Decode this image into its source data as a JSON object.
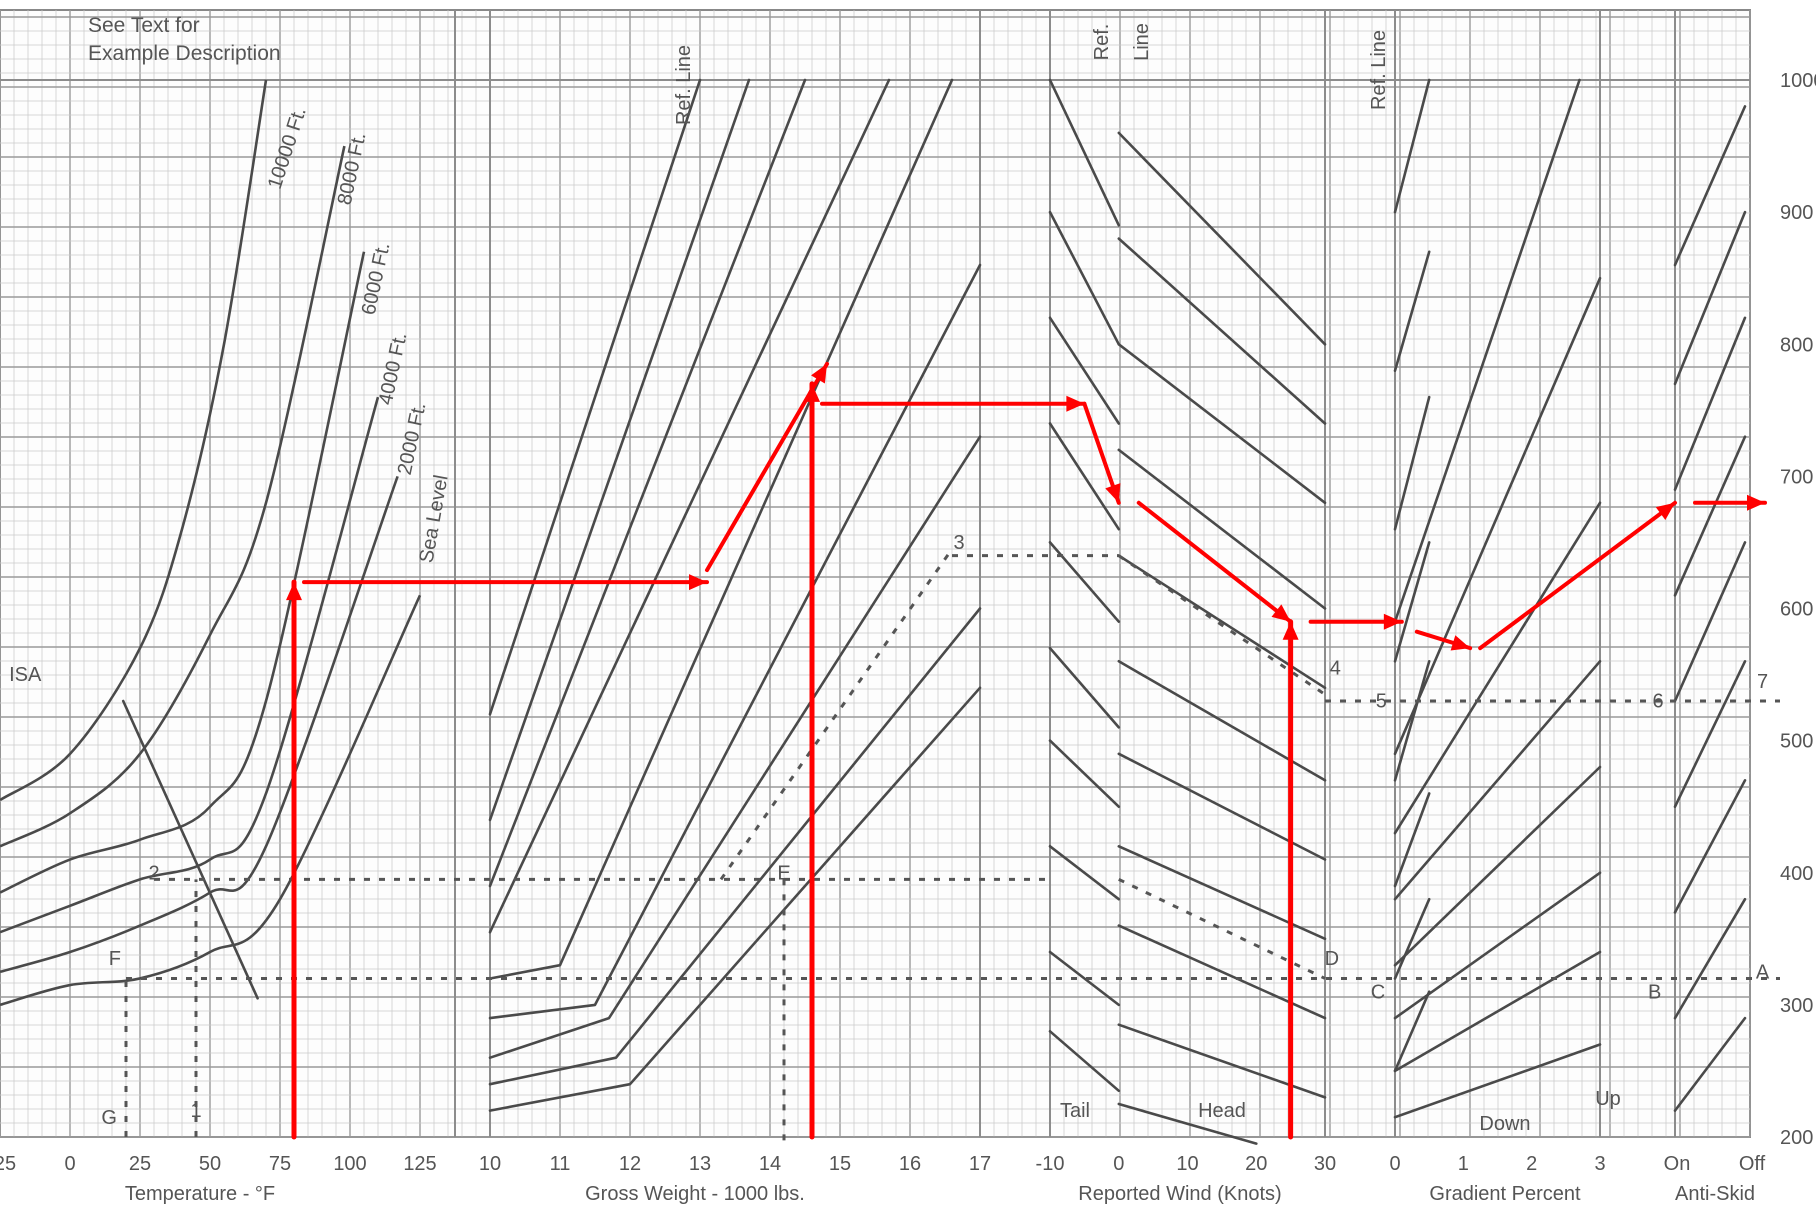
{
  "chart_data": {
    "type": "line",
    "title": "",
    "note": [
      "See Text for",
      "Example Description"
    ],
    "grid": true,
    "y_axis": {
      "ticks": [
        200,
        300,
        400,
        500,
        600,
        700,
        800,
        900,
        1000
      ],
      "range": [
        200,
        1000
      ]
    },
    "panels": [
      {
        "id": "temperature",
        "xlabel": "Temperature - °F",
        "x_ticks": [
          "25",
          "0",
          "25",
          "50",
          "75",
          "100",
          "125"
        ],
        "x_range": [
          -25,
          135
        ],
        "series": [
          {
            "name": "10000 Ft.",
            "x": [
              -25,
              0,
              25,
              40,
              55,
              70
            ],
            "y": [
              455,
              490,
              570,
              660,
              800,
              1000
            ]
          },
          {
            "name": "8000 Ft.",
            "x": [
              -25,
              0,
              25,
              50,
              70,
              98
            ],
            "y": [
              420,
              445,
              490,
              580,
              680,
              950
            ]
          },
          {
            "name": "6000 Ft.",
            "x": [
              -25,
              0,
              25,
              50,
              70,
              105
            ],
            "y": [
              385,
              410,
              425,
              450,
              530,
              870
            ]
          },
          {
            "name": "4000 Ft.",
            "x": [
              -25,
              0,
              25,
              50,
              70,
              110
            ],
            "y": [
              355,
              375,
              395,
              410,
              460,
              760
            ]
          },
          {
            "name": "2000 Ft.",
            "x": [
              -25,
              0,
              25,
              50,
              70,
              117
            ],
            "y": [
              325,
              340,
              360,
              385,
              420,
              700
            ]
          },
          {
            "name": "Sea Level",
            "x": [
              -25,
              0,
              25,
              50,
              75,
              125
            ],
            "y": [
              300,
              315,
              320,
              340,
              380,
              610
            ]
          },
          {
            "name": "ISA",
            "x": [
              19,
              67
            ],
            "y": [
              530,
              305
            ]
          }
        ]
      },
      {
        "id": "gross_weight",
        "xlabel": "Gross Weight - 1000 lbs.",
        "x_ticks": [
          "10",
          "11",
          "12",
          "13",
          "14",
          "15",
          "16",
          "17"
        ],
        "x_range": [
          10,
          17
        ],
        "ref_line": "Ref. Line",
        "series": [
          {
            "x": [
              10,
              13
            ],
            "y": [
              520,
              1000
            ]
          },
          {
            "x": [
              10,
              13.7
            ],
            "y": [
              440,
              1000
            ]
          },
          {
            "x": [
              10,
              14.5
            ],
            "y": [
              390,
              1000
            ]
          },
          {
            "x": [
              10,
              15.7
            ],
            "y": [
              355,
              1000
            ]
          },
          {
            "x": [
              10,
              11,
              16.6
            ],
            "y": [
              320,
              330,
              1000
            ]
          },
          {
            "x": [
              10,
              11.5,
              17
            ],
            "y": [
              290,
              300,
              860
            ]
          },
          {
            "x": [
              10,
              11.7,
              17
            ],
            "y": [
              260,
              290,
              730
            ]
          },
          {
            "x": [
              10,
              11.8,
              17
            ],
            "y": [
              240,
              260,
              600
            ]
          },
          {
            "x": [
              10,
              12,
              17
            ],
            "y": [
              220,
              240,
              540
            ]
          }
        ]
      },
      {
        "id": "wind",
        "xlabel": "Reported Wind (Knots)",
        "x_ticks": [
          "-10",
          "0",
          "10",
          "20",
          "30"
        ],
        "x_range": [
          -10,
          30
        ],
        "ref_line": "Ref. Line",
        "sub_labels": [
          "Tail",
          "Head"
        ],
        "tail_series": [
          {
            "x": [
              -10,
              0
            ],
            "y": [
              1000,
              890
            ]
          },
          {
            "x": [
              -10,
              0
            ],
            "y": [
              900,
              800
            ]
          },
          {
            "x": [
              -10,
              0
            ],
            "y": [
              820,
              740
            ]
          },
          {
            "x": [
              -10,
              0
            ],
            "y": [
              740,
              660
            ]
          },
          {
            "x": [
              -10,
              0
            ],
            "y": [
              650,
              590
            ]
          },
          {
            "x": [
              -10,
              0
            ],
            "y": [
              570,
              510
            ]
          },
          {
            "x": [
              -10,
              0
            ],
            "y": [
              500,
              450
            ]
          },
          {
            "x": [
              -10,
              0
            ],
            "y": [
              420,
              380
            ]
          },
          {
            "x": [
              -10,
              0
            ],
            "y": [
              340,
              300
            ]
          },
          {
            "x": [
              -10,
              0
            ],
            "y": [
              280,
              235
            ]
          }
        ],
        "head_series": [
          {
            "x": [
              0,
              30
            ],
            "y": [
              960,
              800
            ]
          },
          {
            "x": [
              0,
              30
            ],
            "y": [
              880,
              740
            ]
          },
          {
            "x": [
              0,
              30
            ],
            "y": [
              800,
              680
            ]
          },
          {
            "x": [
              0,
              30
            ],
            "y": [
              720,
              600
            ]
          },
          {
            "x": [
              0,
              30
            ],
            "y": [
              640,
              540
            ]
          },
          {
            "x": [
              0,
              30
            ],
            "y": [
              560,
              470
            ]
          },
          {
            "x": [
              0,
              30
            ],
            "y": [
              490,
              410
            ]
          },
          {
            "x": [
              0,
              30
            ],
            "y": [
              420,
              350
            ]
          },
          {
            "x": [
              0,
              30
            ],
            "y": [
              360,
              290
            ]
          },
          {
            "x": [
              0,
              30
            ],
            "y": [
              285,
              230
            ]
          },
          {
            "x": [
              0,
              20
            ],
            "y": [
              225,
              195
            ]
          }
        ]
      },
      {
        "id": "gradient",
        "xlabel": "Gradient Percent",
        "x_ticks": [
          "0",
          "1",
          "2",
          "3"
        ],
        "x_range": [
          0,
          3
        ],
        "ref_line": "Ref. Line",
        "sub_labels": [
          "Down",
          "Up"
        ],
        "down_series": [
          {
            "x": [
              0,
              0.5
            ],
            "y": [
              900,
              1000
            ]
          },
          {
            "x": [
              0,
              0.5
            ],
            "y": [
              780,
              870
            ]
          },
          {
            "x": [
              0,
              0.5
            ],
            "y": [
              660,
              760
            ]
          },
          {
            "x": [
              0,
              0.5
            ],
            "y": [
              560,
              650
            ]
          },
          {
            "x": [
              0,
              0.5
            ],
            "y": [
              470,
              560
            ]
          },
          {
            "x": [
              0,
              0.5
            ],
            "y": [
              390,
              460
            ]
          },
          {
            "x": [
              0,
              0.5
            ],
            "y": [
              320,
              380
            ]
          },
          {
            "x": [
              0,
              0.5
            ],
            "y": [
              250,
              310
            ]
          }
        ],
        "up_series": [
          {
            "x": [
              0,
              2.7
            ],
            "y": [
              590,
              1000
            ]
          },
          {
            "x": [
              0,
              3
            ],
            "y": [
              490,
              850
            ]
          },
          {
            "x": [
              0,
              3
            ],
            "y": [
              430,
              680
            ]
          },
          {
            "x": [
              0,
              3
            ],
            "y": [
              380,
              560
            ]
          },
          {
            "x": [
              0,
              3
            ],
            "y": [
              330,
              480
            ]
          },
          {
            "x": [
              0,
              3
            ],
            "y": [
              290,
              400
            ]
          },
          {
            "x": [
              0,
              3
            ],
            "y": [
              250,
              340
            ]
          },
          {
            "x": [
              0,
              3
            ],
            "y": [
              215,
              270
            ]
          }
        ]
      },
      {
        "id": "anti_skid",
        "xlabel": "Anti-Skid",
        "x_ticks": [
          "On",
          "Off"
        ],
        "x_range": [
          0,
          1
        ],
        "series": [
          {
            "x": [
              0,
              1
            ],
            "y": [
              220,
              290
            ]
          },
          {
            "x": [
              0,
              1
            ],
            "y": [
              290,
              380
            ]
          },
          {
            "x": [
              0,
              1
            ],
            "y": [
              370,
              470
            ]
          },
          {
            "x": [
              0,
              1
            ],
            "y": [
              450,
              560
            ]
          },
          {
            "x": [
              0,
              1
            ],
            "y": [
              530,
              650
            ]
          },
          {
            "x": [
              0,
              1
            ],
            "y": [
              610,
              730
            ]
          },
          {
            "x": [
              0,
              1
            ],
            "y": [
              690,
              820
            ]
          },
          {
            "x": [
              0,
              1
            ],
            "y": [
              770,
              900
            ]
          },
          {
            "x": [
              0,
              1
            ],
            "y": [
              860,
              980
            ]
          }
        ]
      }
    ],
    "annotations": [
      {
        "text": "1",
        "panel": "temperature",
        "x": 45,
        "y": 215
      },
      {
        "text": "G",
        "panel": "temperature",
        "x": 14,
        "y": 210
      },
      {
        "text": "2",
        "panel": "temperature",
        "x": 30,
        "y": 395
      },
      {
        "text": "F",
        "panel": "temperature",
        "x": 16,
        "y": 330
      },
      {
        "text": "ISA",
        "panel": "temperature",
        "x": -16,
        "y": 545
      },
      {
        "text": "E",
        "panel": "gross_weight",
        "x": 14.2,
        "y": 395
      },
      {
        "text": "3",
        "panel": "gross_weight",
        "x": 16.7,
        "y": 645
      },
      {
        "text": "D",
        "panel": "wind",
        "x": 31,
        "y": 330
      },
      {
        "text": "4",
        "panel": "wind",
        "x": 31.5,
        "y": 550
      },
      {
        "text": "C",
        "panel": "gradient",
        "x": -0.25,
        "y": 305
      },
      {
        "text": "5",
        "panel": "gradient",
        "x": -0.2,
        "y": 525
      },
      {
        "text": "B",
        "panel": "gradient",
        "x": 3.8,
        "y": 305
      },
      {
        "text": "6",
        "panel": "gradient",
        "x": 3.85,
        "y": 525
      },
      {
        "text": "A",
        "panel": "anti_skid",
        "x": 1.25,
        "y": 320
      },
      {
        "text": "7",
        "panel": "anti_skid",
        "x": 1.25,
        "y": 540
      }
    ],
    "dashed_examples": [
      {
        "name": "example-path-lower",
        "points": [
          [
            41,
            210
          ],
          [
            41,
            320
          ],
          [
            0,
            320
          ]
        ],
        "level": 320
      },
      {
        "name": "example-path-upper",
        "points": [
          [
            41,
            395
          ],
          [
            130,
            395
          ]
        ],
        "level": 395
      },
      {
        "name": "example-path-right-lower",
        "level": 320
      },
      {
        "name": "example-path-right-upper",
        "level": 530
      },
      {
        "name": "example-path-wind-mid",
        "level": 640
      }
    ],
    "red_overlay": {
      "color": "#ff0000",
      "description_points": [
        {
          "panel": "temperature",
          "x": 80,
          "y": 200
        },
        {
          "panel": "temperature",
          "x": 80,
          "y": 620
        },
        {
          "panel": "gross_weight",
          "x": 13.1,
          "y": 620
        },
        {
          "panel": "gross_weight",
          "x": 14.6,
          "y": 770
        },
        {
          "panel": "wind",
          "x": -5,
          "y": 755
        },
        {
          "panel": "wind",
          "x": 0,
          "y": 680
        },
        {
          "panel": "wind",
          "x": 25,
          "y": 590
        },
        {
          "panel": "gradient",
          "x": 0.1,
          "y": 590
        },
        {
          "panel": "gradient",
          "x": 1.1,
          "y": 570
        },
        {
          "panel": "anti_skid",
          "x": 0,
          "y": 680
        },
        {
          "panel": "anti_skid",
          "x": 1,
          "y": 680
        }
      ]
    }
  }
}
